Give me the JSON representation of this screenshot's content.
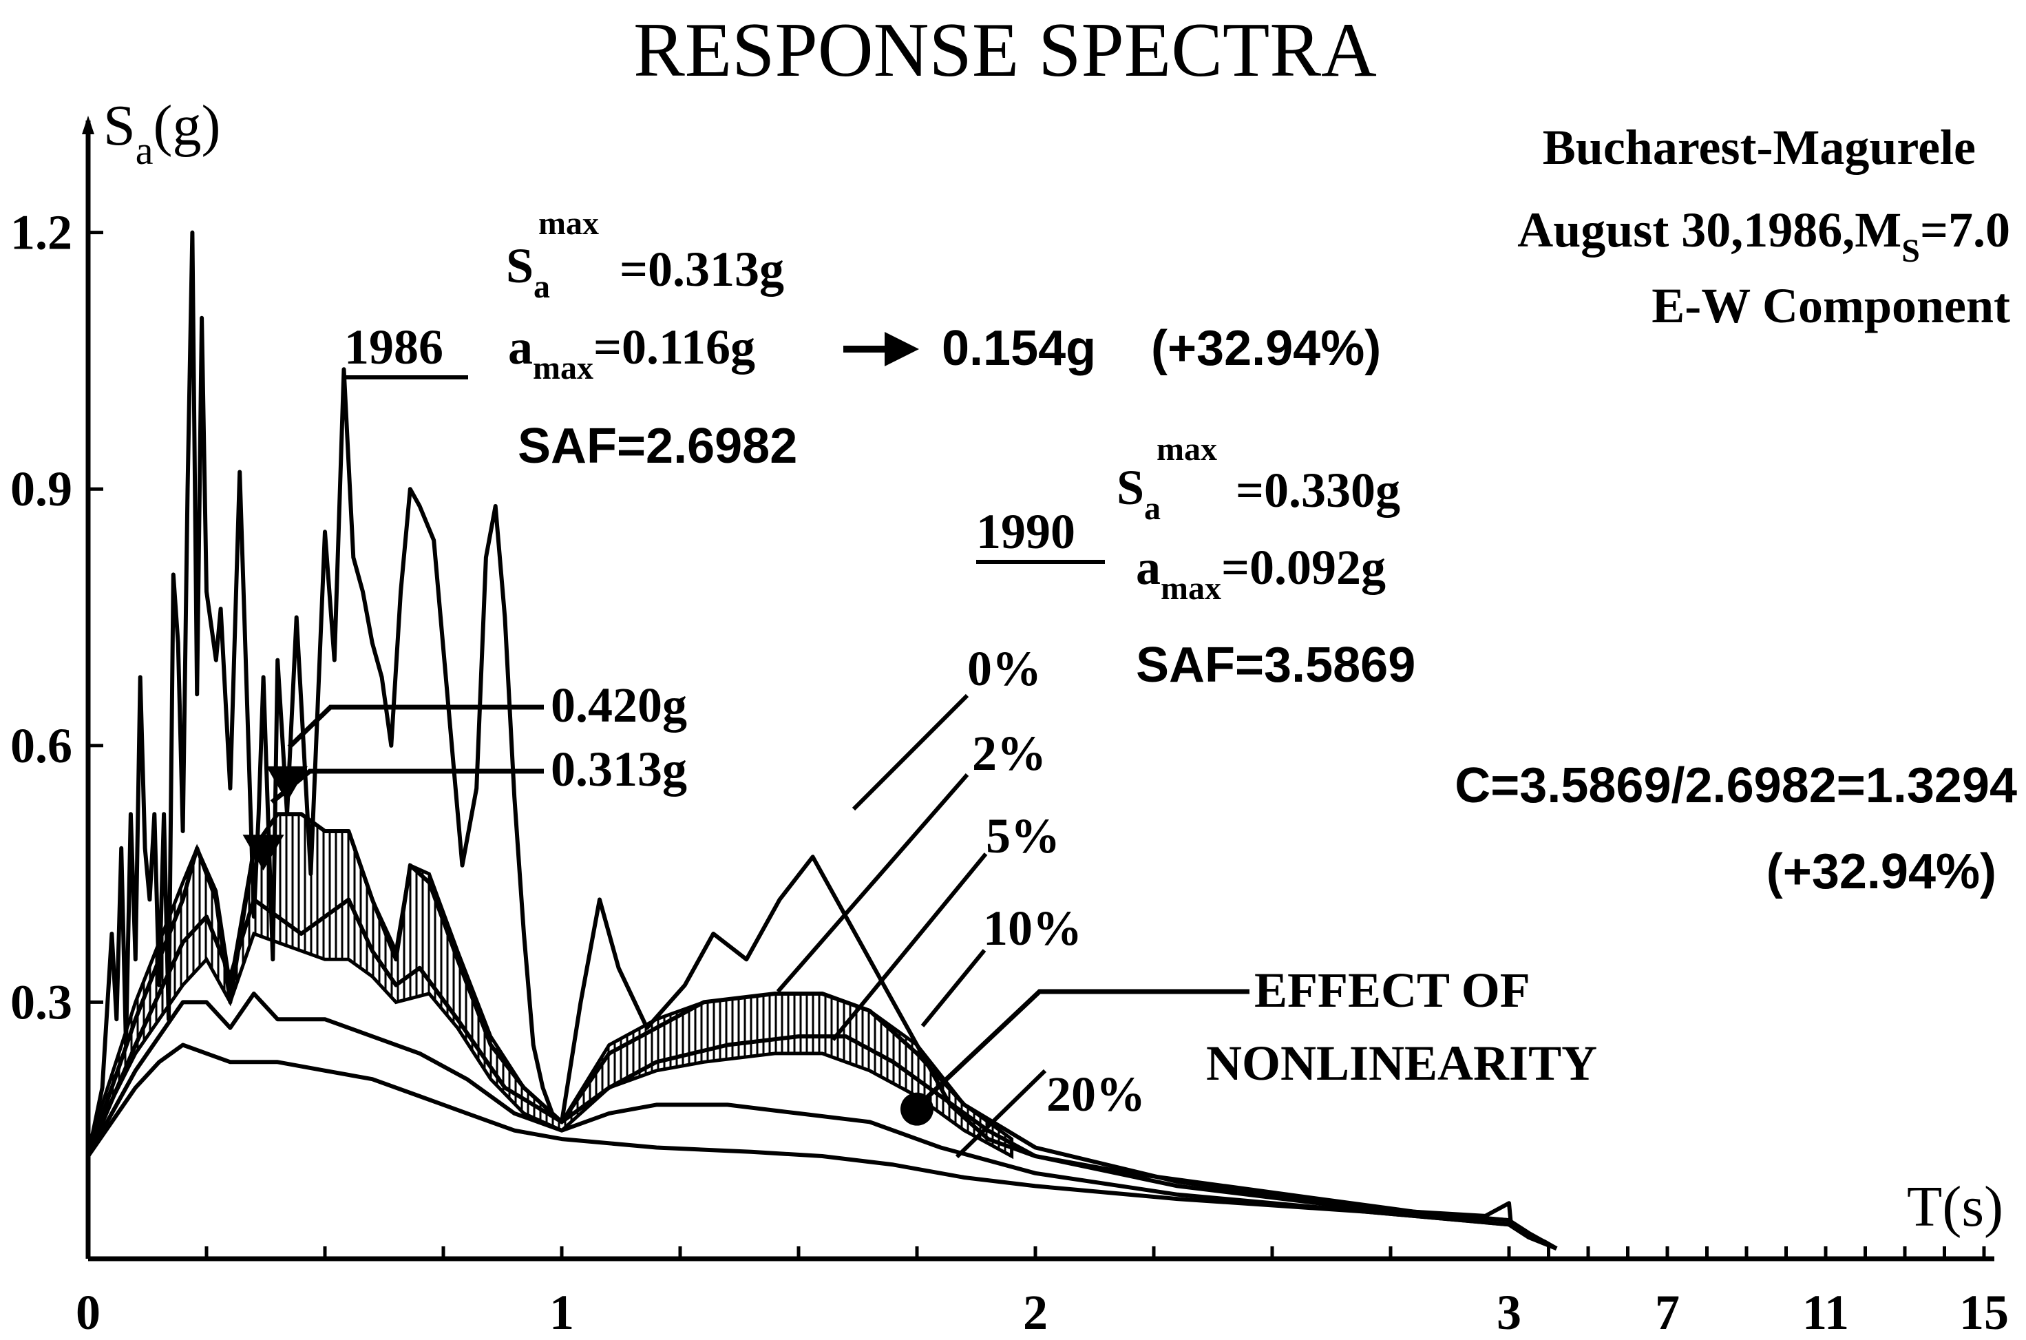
{
  "chart_data": {
    "type": "line",
    "title": "RESPONSE SPECTRA",
    "ylabel": {
      "main": "S",
      "sub": "a",
      "unit": "(g)"
    },
    "xlabel": "T(s)",
    "ylim": [
      0,
      1.3
    ],
    "y_ticks": [
      "0.3",
      "0.6",
      "0.9",
      "1.2"
    ],
    "x_ticks": [
      "0",
      "1",
      "2",
      "3",
      "7",
      "11",
      "15"
    ],
    "x_axis_note": "piecewise scale: linear 0–3 s, compressed 3–15 s",
    "station": {
      "name": "Bucharest-Magurele",
      "event_prefix": "August 30,1986,M",
      "event_sub": "S",
      "event_suffix": "=7.0",
      "component": "E-W Component"
    },
    "annotations": {
      "rec1986": {
        "year": "1986",
        "sa_label": "S",
        "sa_sub": "a",
        "sa_sup": "max",
        "sa_value": "=0.313g",
        "amax_label": "a",
        "amax_sub": "max",
        "amax_value": "=0.116g",
        "amax_scaled": "0.154g",
        "amax_pct": "(+32.94%)",
        "saf": "SAF=2.6982"
      },
      "rec1990": {
        "year": "1990",
        "sa_label": "S",
        "sa_sub": "a",
        "sa_sup": "max",
        "sa_value": "=0.330g",
        "amax_label": "a",
        "amax_sub": "max",
        "amax_value": "=0.092g",
        "saf": "SAF=3.5869"
      },
      "peak_high": "0.420g",
      "peak_low": "0.313g",
      "ratio": "C=3.5869/2.6982=1.3294",
      "ratio_pct": "(+32.94%)",
      "effect_line1": "EFFECT OF",
      "effect_line2": "NONLINEARITY",
      "damping": [
        "0%",
        "2%",
        "5%",
        "10%",
        "20%"
      ]
    },
    "series": [
      {
        "name": "0%",
        "points": [
          [
            0,
            0.12
          ],
          [
            0.03,
            0.2
          ],
          [
            0.05,
            0.38
          ],
          [
            0.06,
            0.28
          ],
          [
            0.07,
            0.48
          ],
          [
            0.08,
            0.25
          ],
          [
            0.09,
            0.52
          ],
          [
            0.1,
            0.35
          ],
          [
            0.11,
            0.68
          ],
          [
            0.12,
            0.48
          ],
          [
            0.13,
            0.42
          ],
          [
            0.14,
            0.52
          ],
          [
            0.15,
            0.32
          ],
          [
            0.16,
            0.52
          ],
          [
            0.17,
            0.28
          ],
          [
            0.18,
            0.8
          ],
          [
            0.19,
            0.72
          ],
          [
            0.2,
            0.5
          ],
          [
            0.21,
            0.9
          ],
          [
            0.22,
            1.2
          ],
          [
            0.23,
            0.66
          ],
          [
            0.24,
            1.1
          ],
          [
            0.25,
            0.78
          ],
          [
            0.27,
            0.7
          ],
          [
            0.28,
            0.76
          ],
          [
            0.3,
            0.55
          ],
          [
            0.32,
            0.92
          ],
          [
            0.33,
            0.75
          ],
          [
            0.35,
            0.4
          ],
          [
            0.36,
            0.52
          ],
          [
            0.37,
            0.68
          ],
          [
            0.39,
            0.35
          ],
          [
            0.4,
            0.7
          ],
          [
            0.42,
            0.52
          ],
          [
            0.44,
            0.75
          ],
          [
            0.47,
            0.45
          ],
          [
            0.5,
            0.85
          ],
          [
            0.52,
            0.7
          ],
          [
            0.54,
            1.04
          ],
          [
            0.56,
            0.82
          ],
          [
            0.58,
            0.78
          ],
          [
            0.6,
            0.72
          ],
          [
            0.62,
            0.68
          ],
          [
            0.64,
            0.6
          ],
          [
            0.66,
            0.78
          ],
          [
            0.68,
            0.9
          ],
          [
            0.7,
            0.88
          ],
          [
            0.73,
            0.84
          ],
          [
            0.76,
            0.65
          ],
          [
            0.79,
            0.46
          ],
          [
            0.82,
            0.55
          ],
          [
            0.84,
            0.82
          ],
          [
            0.86,
            0.88
          ],
          [
            0.88,
            0.75
          ],
          [
            0.9,
            0.54
          ],
          [
            0.92,
            0.38
          ],
          [
            0.94,
            0.25
          ],
          [
            0.96,
            0.2
          ],
          [
            0.98,
            0.17
          ],
          [
            1.0,
            0.16
          ],
          [
            1.04,
            0.3
          ],
          [
            1.08,
            0.42
          ],
          [
            1.12,
            0.34
          ],
          [
            1.18,
            0.27
          ],
          [
            1.26,
            0.32
          ],
          [
            1.32,
            0.38
          ],
          [
            1.39,
            0.35
          ],
          [
            1.46,
            0.42
          ],
          [
            1.53,
            0.47
          ],
          [
            1.6,
            0.4
          ],
          [
            1.68,
            0.32
          ],
          [
            1.75,
            0.25
          ],
          [
            1.82,
            0.18
          ],
          [
            1.9,
            0.14
          ],
          [
            2.0,
            0.12
          ],
          [
            2.2,
            0.1
          ],
          [
            2.4,
            0.085
          ],
          [
            2.6,
            0.07
          ],
          [
            2.8,
            0.055
          ],
          [
            2.95,
            0.05
          ],
          [
            3.0,
            0.065
          ],
          [
            3.05,
            0.04
          ],
          [
            3.4,
            0.03
          ],
          [
            3.9,
            0.02
          ],
          [
            4.2,
            0.012
          ]
        ]
      },
      {
        "name": "2%",
        "points": [
          [
            0,
            0.12
          ],
          [
            0.1,
            0.28
          ],
          [
            0.2,
            0.42
          ],
          [
            0.23,
            0.48
          ],
          [
            0.27,
            0.42
          ],
          [
            0.3,
            0.3
          ],
          [
            0.35,
            0.48
          ],
          [
            0.4,
            0.52
          ],
          [
            0.45,
            0.52
          ],
          [
            0.5,
            0.5
          ],
          [
            0.55,
            0.5
          ],
          [
            0.6,
            0.42
          ],
          [
            0.65,
            0.35
          ],
          [
            0.68,
            0.46
          ],
          [
            0.72,
            0.44
          ],
          [
            0.78,
            0.35
          ],
          [
            0.85,
            0.25
          ],
          [
            0.92,
            0.2
          ],
          [
            1.0,
            0.16
          ],
          [
            1.1,
            0.24
          ],
          [
            1.2,
            0.27
          ],
          [
            1.3,
            0.3
          ],
          [
            1.45,
            0.31
          ],
          [
            1.55,
            0.31
          ],
          [
            1.65,
            0.29
          ],
          [
            1.75,
            0.24
          ],
          [
            1.85,
            0.18
          ],
          [
            2.0,
            0.13
          ],
          [
            2.3,
            0.09
          ],
          [
            2.7,
            0.06
          ],
          [
            3.0,
            0.045
          ],
          [
            3.5,
            0.03
          ],
          [
            4.2,
            0.012
          ]
        ]
      },
      {
        "name": "5%",
        "points": [
          [
            0,
            0.12
          ],
          [
            0.1,
            0.25
          ],
          [
            0.2,
            0.37
          ],
          [
            0.25,
            0.4
          ],
          [
            0.3,
            0.33
          ],
          [
            0.35,
            0.42
          ],
          [
            0.4,
            0.4
          ],
          [
            0.45,
            0.38
          ],
          [
            0.5,
            0.4
          ],
          [
            0.55,
            0.42
          ],
          [
            0.6,
            0.36
          ],
          [
            0.65,
            0.32
          ],
          [
            0.7,
            0.34
          ],
          [
            0.78,
            0.28
          ],
          [
            0.88,
            0.2
          ],
          [
            1.0,
            0.16
          ],
          [
            1.1,
            0.2
          ],
          [
            1.2,
            0.23
          ],
          [
            1.35,
            0.25
          ],
          [
            1.5,
            0.26
          ],
          [
            1.6,
            0.26
          ],
          [
            1.7,
            0.23
          ],
          [
            1.8,
            0.19
          ],
          [
            1.9,
            0.15
          ],
          [
            2.0,
            0.12
          ],
          [
            2.3,
            0.085
          ],
          [
            2.7,
            0.058
          ],
          [
            3.0,
            0.045
          ],
          [
            3.5,
            0.028
          ],
          [
            4.2,
            0.012
          ]
        ]
      },
      {
        "name": "10%",
        "points": [
          [
            0,
            0.12
          ],
          [
            0.1,
            0.22
          ],
          [
            0.2,
            0.3
          ],
          [
            0.25,
            0.3
          ],
          [
            0.3,
            0.27
          ],
          [
            0.35,
            0.31
          ],
          [
            0.4,
            0.28
          ],
          [
            0.5,
            0.28
          ],
          [
            0.6,
            0.26
          ],
          [
            0.7,
            0.24
          ],
          [
            0.8,
            0.21
          ],
          [
            0.9,
            0.17
          ],
          [
            1.0,
            0.15
          ],
          [
            1.1,
            0.17
          ],
          [
            1.2,
            0.18
          ],
          [
            1.35,
            0.18
          ],
          [
            1.5,
            0.17
          ],
          [
            1.65,
            0.16
          ],
          [
            1.8,
            0.13
          ],
          [
            2.0,
            0.1
          ],
          [
            2.3,
            0.075
          ],
          [
            2.7,
            0.055
          ],
          [
            3.0,
            0.04
          ],
          [
            3.5,
            0.025
          ],
          [
            4.2,
            0.012
          ]
        ]
      },
      {
        "name": "20%",
        "points": [
          [
            0,
            0.12
          ],
          [
            0.05,
            0.16
          ],
          [
            0.1,
            0.2
          ],
          [
            0.15,
            0.23
          ],
          [
            0.2,
            0.25
          ],
          [
            0.25,
            0.24
          ],
          [
            0.3,
            0.23
          ],
          [
            0.4,
            0.23
          ],
          [
            0.5,
            0.22
          ],
          [
            0.6,
            0.21
          ],
          [
            0.7,
            0.19
          ],
          [
            0.8,
            0.17
          ],
          [
            0.9,
            0.15
          ],
          [
            1.0,
            0.14
          ],
          [
            1.2,
            0.13
          ],
          [
            1.4,
            0.125
          ],
          [
            1.55,
            0.12
          ],
          [
            1.7,
            0.11
          ],
          [
            1.85,
            0.095
          ],
          [
            2.0,
            0.085
          ],
          [
            2.3,
            0.07
          ],
          [
            2.7,
            0.055
          ],
          [
            3.0,
            0.04
          ],
          [
            3.5,
            0.025
          ],
          [
            4.2,
            0.012
          ]
        ]
      }
    ],
    "band": {
      "upper": [
        [
          0,
          0.13
        ],
        [
          0.1,
          0.3
        ],
        [
          0.2,
          0.44
        ],
        [
          0.23,
          0.48
        ],
        [
          0.27,
          0.43
        ],
        [
          0.3,
          0.32
        ],
        [
          0.35,
          0.48
        ],
        [
          0.4,
          0.52
        ],
        [
          0.45,
          0.52
        ],
        [
          0.5,
          0.5
        ],
        [
          0.55,
          0.5
        ],
        [
          0.6,
          0.42
        ],
        [
          0.65,
          0.36
        ],
        [
          0.68,
          0.46
        ],
        [
          0.72,
          0.45
        ],
        [
          0.78,
          0.36
        ],
        [
          0.85,
          0.26
        ],
        [
          0.92,
          0.2
        ],
        [
          1.0,
          0.16
        ],
        [
          1.1,
          0.25
        ],
        [
          1.2,
          0.28
        ],
        [
          1.3,
          0.3
        ],
        [
          1.45,
          0.31
        ],
        [
          1.55,
          0.31
        ],
        [
          1.65,
          0.29
        ],
        [
          1.75,
          0.25
        ],
        [
          1.85,
          0.18
        ],
        [
          1.95,
          0.14
        ]
      ],
      "lower": [
        [
          1.95,
          0.12
        ],
        [
          1.85,
          0.15
        ],
        [
          1.75,
          0.19
        ],
        [
          1.65,
          0.22
        ],
        [
          1.55,
          0.24
        ],
        [
          1.45,
          0.24
        ],
        [
          1.3,
          0.23
        ],
        [
          1.2,
          0.22
        ],
        [
          1.1,
          0.2
        ],
        [
          1.0,
          0.15
        ],
        [
          0.92,
          0.17
        ],
        [
          0.85,
          0.21
        ],
        [
          0.78,
          0.27
        ],
        [
          0.72,
          0.31
        ],
        [
          0.65,
          0.3
        ],
        [
          0.6,
          0.33
        ],
        [
          0.55,
          0.35
        ],
        [
          0.5,
          0.35
        ],
        [
          0.45,
          0.36
        ],
        [
          0.4,
          0.37
        ],
        [
          0.35,
          0.38
        ],
        [
          0.3,
          0.3
        ],
        [
          0.25,
          0.35
        ],
        [
          0.2,
          0.32
        ],
        [
          0.1,
          0.24
        ],
        [
          0,
          0.13
        ]
      ]
    },
    "markers": [
      {
        "type": "triangle",
        "x": 0.42,
        "y": 0.55
      },
      {
        "type": "triangle",
        "x": 0.37,
        "y": 0.47
      },
      {
        "type": "dot",
        "x": 1.75,
        "y": 0.175
      }
    ]
  }
}
